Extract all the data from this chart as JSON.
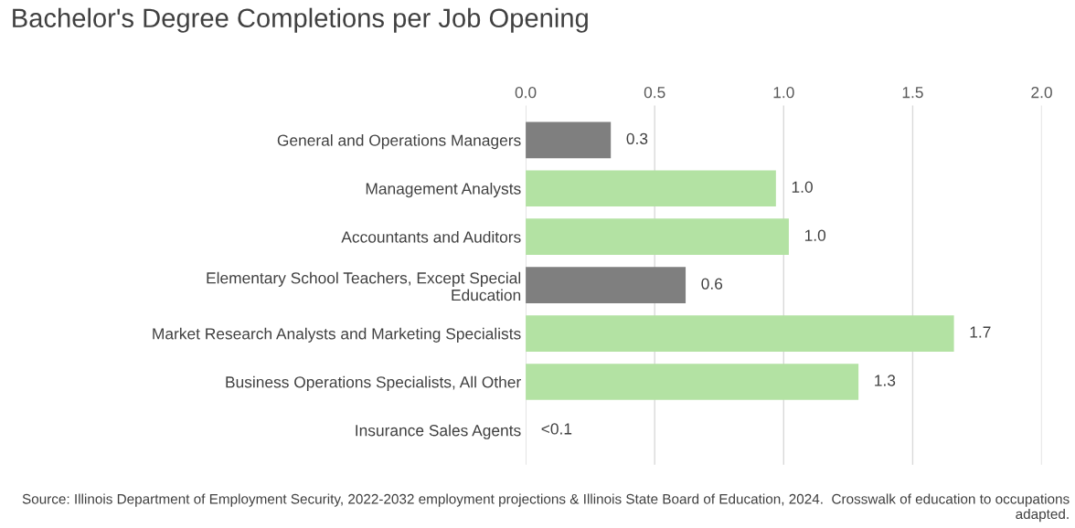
{
  "chart_data": {
    "type": "bar",
    "orientation": "horizontal",
    "title": "Bachelor's Degree Completions per Job Opening",
    "categories": [
      "General and Operations Managers",
      "Management Analysts",
      "Accountants and Auditors",
      "Elementary School Teachers, Except Special\nEducation",
      "Market Research Analysts and Marketing Specialists",
      "Business Operations Specialists, All Other",
      "Insurance Sales Agents"
    ],
    "values": [
      0.33,
      0.97,
      1.02,
      0.62,
      1.66,
      1.29,
      0.0
    ],
    "colors": [
      "#7f7f7f",
      "#b3e2a3",
      "#b3e2a3",
      "#7f7f7f",
      "#b3e2a3",
      "#b3e2a3",
      "#b3e2a3"
    ],
    "value_labels": [
      "0.3",
      "1.0",
      "1.0",
      "0.6",
      "1.7",
      "1.3",
      "<0.1"
    ],
    "xlim": [
      0,
      2.0
    ],
    "xticks": [
      {
        "value": 0,
        "label": "0.0"
      },
      {
        "value": 0.5,
        "label": "0.5"
      },
      {
        "value": 1.0,
        "label": "1.0"
      },
      {
        "value": 1.5,
        "label": "1.5"
      },
      {
        "value": 2.0,
        "label": "2.0"
      }
    ],
    "grid": "x",
    "annotations": [
      "Source: Illinois Department of Employment Security, 2022-2032 employment projections & Illinois State Board of Education, 2024.  Crosswalk of education to occupations adapted."
    ]
  }
}
